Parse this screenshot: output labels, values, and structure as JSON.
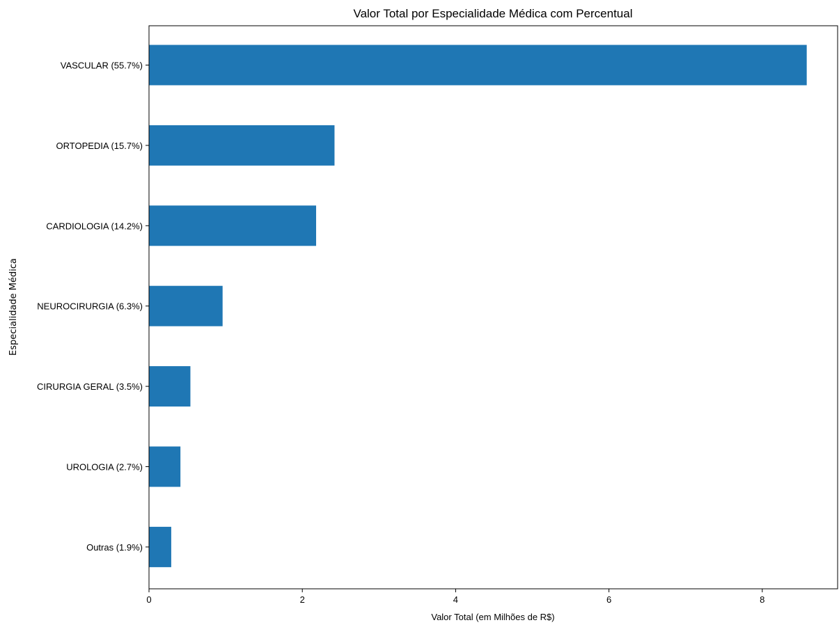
{
  "chart_data": {
    "type": "bar",
    "orientation": "horizontal",
    "title": "Valor Total por Especialidade Médica com Percentual",
    "xlabel": "Valor Total (em Milhões de R$)",
    "ylabel": "Especialidade Médica",
    "xlim": [
      0,
      9
    ],
    "xticks": [
      0,
      2,
      4,
      6,
      8
    ],
    "grid": false,
    "bar_color": "#1f77b4",
    "categories": [
      "VASCULAR (55.7%)",
      "ORTOPEDIA (15.7%)",
      "CARDIOLOGIA (14.2%)",
      "NEUROCIRURGIA (6.3%)",
      "CIRURGIA GERAL (3.5%)",
      "UROLOGIA (2.7%)",
      "Outras (1.9%)"
    ],
    "values": [
      8.58,
      2.42,
      2.18,
      0.96,
      0.54,
      0.41,
      0.29
    ]
  }
}
